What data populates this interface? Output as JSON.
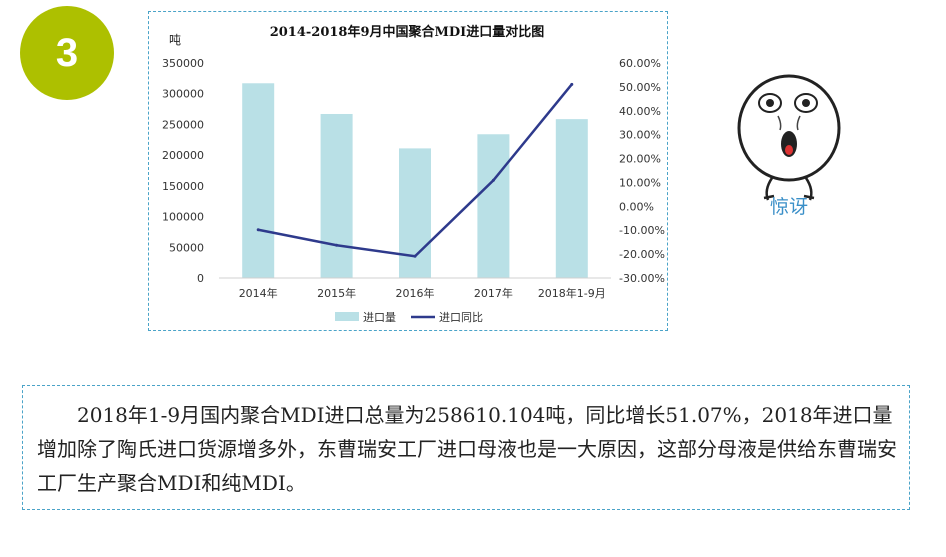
{
  "badge": {
    "number": "3",
    "color": "#adc000"
  },
  "chart_data": {
    "type": "bar+line",
    "title": "2014-2018年9月中国聚合MDI进口量对比图",
    "y_left_unit": "吨",
    "categories": [
      "2014年",
      "2015年",
      "2016年",
      "2017年",
      "2018年1-9月"
    ],
    "series": [
      {
        "name": "进口量",
        "type": "bar",
        "axis": "left",
        "color": "#b9e0e6",
        "values": [
          317000,
          267000,
          211000,
          234000,
          258610
        ]
      },
      {
        "name": "进口同比",
        "type": "line",
        "axis": "right",
        "color": "#2e3a8c",
        "values": [
          -9.8,
          -16.3,
          -20.9,
          10.9,
          51.07
        ]
      }
    ],
    "y_left": {
      "min": 0,
      "max": 350000,
      "step": 50000,
      "ticks": [
        "0",
        "50000",
        "100000",
        "150000",
        "200000",
        "250000",
        "300000",
        "350000"
      ]
    },
    "y_right": {
      "min": -30,
      "max": 60,
      "step": 10,
      "ticks": [
        "-30.00%",
        "-20.00%",
        "-10.00%",
        "0.00%",
        "10.00%",
        "20.00%",
        "30.00%",
        "40.00%",
        "50.00%",
        "60.00%"
      ]
    },
    "legend": [
      "进口量",
      "进口同比"
    ],
    "legend_position": "bottom",
    "grid": false
  },
  "sticker": {
    "caption": "惊讶",
    "icon": "surprised-face-icon"
  },
  "paragraph": "2018年1-9月国内聚合MDI进口总量为258610.104吨，同比增长51.07%，2018年进口量增加除了陶氏进口货源增多外，东曹瑞安工厂进口母液也是一大原因，这部分母液是供给东曹瑞安工厂生产聚合MDI和纯MDI。"
}
